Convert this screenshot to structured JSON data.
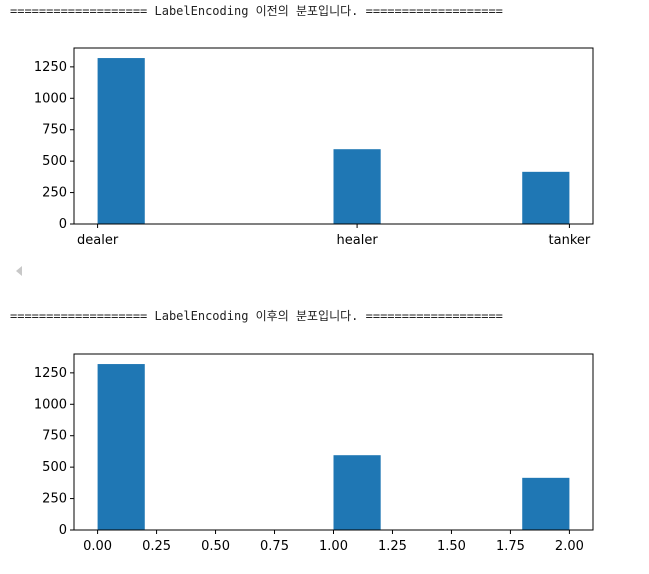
{
  "output": {
    "line_before": "=================== LabelEncoding 이전의 분포입니다. ===================",
    "line_after": "=================== LabelEncoding 이후의 분포입니다. ==================="
  },
  "colors": {
    "bar": "#1f77b4",
    "axis": "#000000",
    "text": "#222222"
  },
  "icons": {
    "scroll_left": "scroll-left-arrow-icon"
  },
  "chart_data": [
    {
      "type": "bar",
      "title": "",
      "xlabel": "",
      "ylabel": "",
      "x_tick_labels": [
        "dealer",
        "healer",
        "tanker"
      ],
      "y_ticks": [
        0,
        250,
        500,
        750,
        1000,
        1250
      ],
      "ylim": [
        0,
        1400
      ],
      "xlim": [
        -0.1,
        2.1
      ],
      "bars": [
        {
          "label": "dealer",
          "x_start": 0.0,
          "x_end": 0.2,
          "value": 1320
        },
        {
          "label": "healer",
          "x_start": 1.0,
          "x_end": 1.2,
          "value": 595
        },
        {
          "label": "tanker",
          "x_start": 1.8,
          "x_end": 2.0,
          "value": 415
        }
      ],
      "grid": false
    },
    {
      "type": "bar",
      "title": "",
      "xlabel": "",
      "ylabel": "",
      "x_ticks": [
        0.0,
        0.25,
        0.5,
        0.75,
        1.0,
        1.25,
        1.5,
        1.75,
        2.0
      ],
      "x_tick_labels": [
        "0.00",
        "0.25",
        "0.50",
        "0.75",
        "1.00",
        "1.25",
        "1.50",
        "1.75",
        "2.00"
      ],
      "y_ticks": [
        0,
        250,
        500,
        750,
        1000,
        1250
      ],
      "ylim": [
        0,
        1400
      ],
      "xlim": [
        -0.1,
        2.1
      ],
      "bars": [
        {
          "x_start": 0.0,
          "x_end": 0.2,
          "value": 1320
        },
        {
          "x_start": 1.0,
          "x_end": 1.2,
          "value": 595
        },
        {
          "x_start": 1.8,
          "x_end": 2.0,
          "value": 415
        }
      ],
      "grid": false
    }
  ]
}
